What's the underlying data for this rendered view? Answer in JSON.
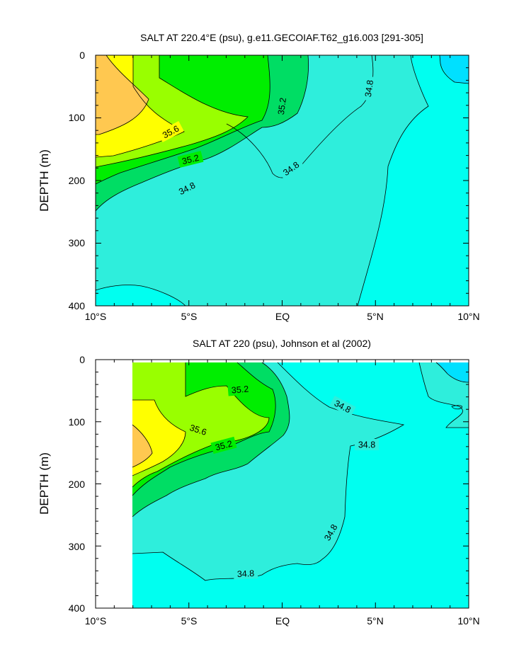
{
  "chart_data": [
    {
      "type": "contour",
      "title": "SALT AT 220.4°E (psu), g.e11.GECOIAF.T62_g16.003 [291-305]",
      "ylabel": "DEPTH (m)",
      "xlabel": "",
      "x_ticks": [
        "10°S",
        "5°S",
        "EQ",
        "5°N",
        "10°N"
      ],
      "x_range": [
        -10,
        10
      ],
      "y_ticks": [
        "0",
        "100",
        "200",
        "300",
        "400"
      ],
      "y_range": [
        0,
        400
      ],
      "y_reversed": true,
      "contour_labels": [
        "35.6",
        "35.2",
        "34.8",
        "35.2",
        "34.8",
        "34.8"
      ],
      "contour_levels": [
        34.4,
        34.6,
        34.8,
        35.0,
        35.2,
        35.4,
        35.6,
        35.8
      ],
      "colors": {
        "lt34_6": "#00e0ff",
        "lt34_8": "#00fff0",
        "lt35_0": "#2eeedc",
        "lt35_2": "#00dd64",
        "lt35_4": "#00ee00",
        "lt35_6": "#99ff00",
        "lt35_8": "#ffff00",
        "ge35_8": "#ffc850"
      }
    },
    {
      "type": "contour",
      "title": "SALT AT 220 (psu), Johnson et al (2002)",
      "ylabel": "DEPTH (m)",
      "xlabel": "",
      "x_ticks": [
        "10°S",
        "5°S",
        "EQ",
        "5°N",
        "10°N"
      ],
      "x_range": [
        -10,
        10
      ],
      "y_ticks": [
        "0",
        "100",
        "200",
        "300",
        "400"
      ],
      "y_range": [
        0,
        400
      ],
      "y_reversed": true,
      "data_x_range": [
        -8,
        10
      ],
      "contour_labels": [
        "35.2",
        "34.8",
        "35.6",
        "34.8",
        "35.2",
        "34.8",
        "34.8"
      ],
      "contour_levels": [
        34.4,
        34.6,
        34.8,
        35.0,
        35.2,
        35.4,
        35.6,
        35.8
      ],
      "colors": {
        "lt34_6": "#00e0ff",
        "lt34_8": "#00fff0",
        "lt35_0": "#2eeedc",
        "lt35_2": "#00dd64",
        "lt35_4": "#00ee00",
        "lt35_6": "#99ff00",
        "lt35_8": "#ffff00",
        "ge35_8": "#ffc850"
      }
    }
  ]
}
